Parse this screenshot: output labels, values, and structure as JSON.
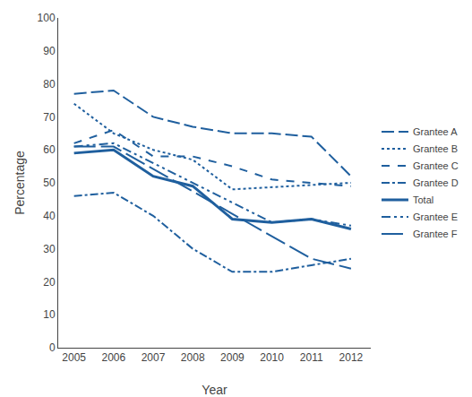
{
  "chart_data": {
    "type": "line",
    "x": [
      2005,
      2006,
      2007,
      2008,
      2009,
      2010,
      2011,
      2012
    ],
    "xlabel": "Year",
    "ylabel": "Percentage",
    "xlim": [
      2004.6,
      2012.5
    ],
    "xticks": [
      2005,
      2006,
      2007,
      2008,
      2009,
      2010,
      2011,
      2012
    ],
    "ylim": [
      0,
      100
    ],
    "yticks": [
      0,
      10,
      20,
      30,
      40,
      50,
      60,
      70,
      80,
      90,
      100
    ],
    "grid": false,
    "legend": "right",
    "color": "#1f5f9e",
    "series": [
      {
        "name": "Grantee A",
        "line_style": "longdash",
        "values": [
          77,
          78,
          70,
          67,
          65,
          65,
          64,
          52
        ]
      },
      {
        "name": "Grantee B",
        "line_style": "dot",
        "values": [
          74,
          65,
          60,
          57,
          48,
          null,
          null,
          50
        ]
      },
      {
        "name": "Grantee C",
        "line_style": "dash",
        "values": [
          62,
          66,
          58,
          58,
          55,
          51,
          50,
          49
        ]
      },
      {
        "name": "Grantee D",
        "line_style": "dashdot",
        "values": [
          46,
          47,
          40,
          30,
          23,
          23,
          25,
          27
        ]
      },
      {
        "name": "Total",
        "line_style": "solid",
        "values": [
          59,
          60,
          52,
          49,
          39,
          38,
          39,
          36
        ]
      },
      {
        "name": "Grantee E",
        "line_style": "dashdotdot",
        "values": [
          61,
          62,
          null,
          null,
          null,
          38,
          39,
          37
        ]
      },
      {
        "name": "Grantee F",
        "line_style": "verylongdash",
        "values": [
          61,
          61,
          null,
          null,
          null,
          null,
          27,
          24
        ]
      }
    ]
  }
}
